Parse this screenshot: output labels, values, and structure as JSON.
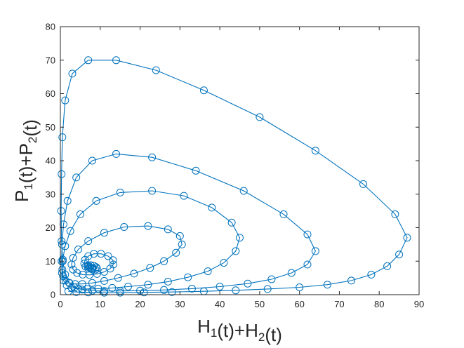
{
  "chart_data": {
    "type": "line",
    "title": "",
    "xlabel": "H1(t)+H2(t)",
    "ylabel": "P1(t)+P2(t)",
    "xlim": [
      0,
      90
    ],
    "ylim": [
      0,
      80
    ],
    "xticks": [
      "0",
      "10",
      "20",
      "30",
      "40",
      "50",
      "60",
      "70",
      "80",
      "90"
    ],
    "yticks": [
      "0",
      "10",
      "20",
      "30",
      "40",
      "50",
      "60",
      "70",
      "80"
    ],
    "grid": false,
    "legend": "none",
    "marker": "open-circle",
    "colors": {
      "series": "#0072bd",
      "axes": "#262626",
      "background": "#ffffff"
    },
    "series": [
      {
        "values_description_free": true,
        "x": [
          2,
          4,
          7,
          11,
          15,
          21,
          28,
          36,
          44,
          52,
          60,
          67,
          73,
          78,
          82,
          85,
          87,
          84,
          76,
          64,
          50,
          36,
          24,
          14,
          7,
          3,
          1.2,
          0.5,
          0.3,
          0.2,
          0.3,
          0.6,
          1.2,
          2.2,
          3.6,
          5.5,
          8,
          11,
          15,
          20,
          26,
          33,
          40,
          47,
          53,
          58,
          62,
          64,
          62,
          56,
          46,
          34,
          23,
          14,
          8,
          4,
          1.8,
          0.8,
          0.4,
          0.3,
          0.4,
          0.8,
          1.6,
          2.8,
          4.5,
          6.8,
          9.5,
          13,
          17,
          22,
          27,
          32,
          37,
          41,
          44,
          45,
          43,
          38,
          31,
          23,
          15,
          9,
          5,
          2.5,
          1.2,
          0.6,
          0.5,
          0.7,
          1.3,
          2.3,
          3.7,
          5.5,
          8,
          11,
          14.5,
          18.5,
          22.5,
          26,
          29,
          30.5,
          30,
          27,
          22,
          16,
          11,
          7,
          4.5,
          3.2,
          2.8,
          3.2,
          4.2,
          5.6,
          7.3,
          9.2,
          11,
          12.5,
          13.3,
          13.2,
          12,
          10.2,
          8.4,
          7,
          6.2,
          6,
          6.3,
          7,
          8,
          8.8,
          9.2,
          9,
          8.4,
          7.6,
          7,
          6.8,
          7,
          7.4,
          7.8,
          8
        ],
        "y": [
          1,
          0.8,
          0.7,
          0.6,
          0.6,
          0.7,
          0.8,
          1,
          1.3,
          1.7,
          2.2,
          3,
          4.2,
          6,
          8.5,
          12,
          17,
          24,
          33,
          43,
          53,
          61,
          67,
          70,
          70,
          66,
          58,
          47,
          36,
          25,
          16,
          10,
          6,
          3.5,
          2.2,
          1.5,
          1.2,
          1.1,
          1.1,
          1.2,
          1.4,
          1.8,
          2.4,
          3.3,
          4.6,
          6.5,
          9,
          13,
          18,
          24,
          31,
          37,
          41,
          42,
          40,
          35,
          28,
          21,
          15,
          10,
          6.5,
          4.2,
          2.8,
          2.1,
          1.8,
          1.7,
          1.8,
          2,
          2.4,
          3,
          3.9,
          5.2,
          7,
          9.5,
          13,
          17,
          21.5,
          26,
          29.5,
          31,
          30.5,
          28,
          24,
          19,
          14.5,
          10.5,
          7.5,
          5.5,
          4.2,
          3.5,
          3.2,
          3.2,
          3.5,
          4.1,
          5,
          6.3,
          8,
          10,
          12.5,
          15,
          17.5,
          19.5,
          20.5,
          20.2,
          18.5,
          16,
          13.5,
          11,
          9,
          7.5,
          6.5,
          6,
          5.9,
          6.2,
          6.8,
          7.8,
          9,
          10.3,
          11.5,
          12.2,
          12.2,
          11.5,
          10.4,
          9.3,
          8.4,
          7.8,
          7.5,
          7.5,
          7.8,
          8.2,
          8.6,
          8.8,
          8.8,
          8.6,
          8.3,
          8.1,
          8,
          8
        ]
      }
    ]
  }
}
